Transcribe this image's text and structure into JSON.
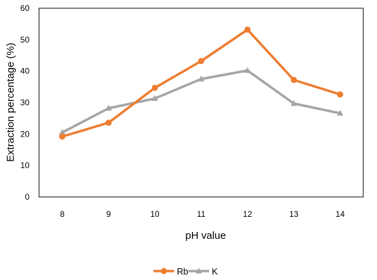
{
  "chart_data": {
    "type": "line",
    "title": "",
    "xlabel": "pH value",
    "ylabel": "Extraction percentage  (%)",
    "x": [
      8,
      9,
      10,
      11,
      12,
      13,
      14
    ],
    "x_tick_labels": [
      "8",
      "9",
      "10",
      "11",
      "12",
      "13",
      "14"
    ],
    "ylim": [
      0,
      60
    ],
    "y_ticks": [
      0,
      10,
      20,
      30,
      40,
      50,
      60
    ],
    "y_tick_labels": [
      "0",
      "10",
      "20",
      "30",
      "40",
      "50",
      "60"
    ],
    "grid": false,
    "legend_position": "bottom",
    "series": [
      {
        "name": "Rb",
        "color": "#ED7D31",
        "marker": "circle",
        "values": [
          19.2,
          23.6,
          34.7,
          43.2,
          53.2,
          37.2,
          32.6
        ]
      },
      {
        "name": "K",
        "color": "#A5A5A5",
        "marker": "triangle",
        "values": [
          20.5,
          28.2,
          31.3,
          37.5,
          40.2,
          29.7,
          26.6
        ]
      }
    ]
  }
}
